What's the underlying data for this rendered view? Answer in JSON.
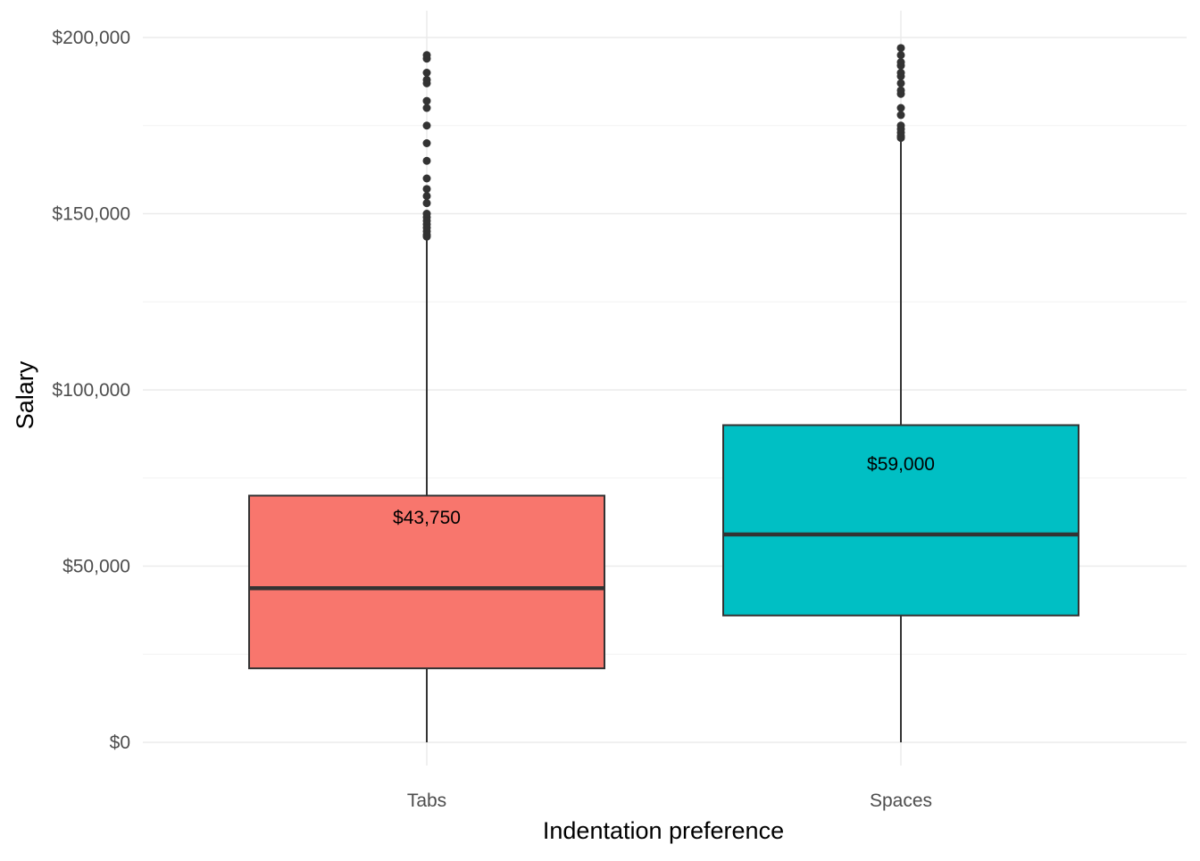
{
  "chart_data": {
    "type": "boxplot",
    "title": "",
    "xlabel": "Indentation preference",
    "ylabel": "Salary",
    "ylim": [
      0,
      200000
    ],
    "y_ticks": [
      0,
      50000,
      100000,
      150000,
      200000
    ],
    "y_tick_labels": [
      "$0",
      "$50,000",
      "$100,000",
      "$150,000",
      "$200,000"
    ],
    "grid": true,
    "legend": "none",
    "categories": [
      "Tabs",
      "Spaces"
    ],
    "boxes": [
      {
        "category": "Tabs",
        "color": "#f8766d",
        "whisker_low": 0,
        "q1": 21000,
        "median": 43750,
        "q3": 70000,
        "whisker_high": 143000,
        "median_label": "$43,750",
        "outliers": [
          143500,
          144000,
          145000,
          146000,
          147000,
          148000,
          149000,
          150000,
          153000,
          155000,
          157000,
          160000,
          165000,
          170000,
          175000,
          180000,
          182000,
          187000,
          188000,
          190000,
          194000,
          195000
        ]
      },
      {
        "category": "Spaces",
        "color": "#00bfc4",
        "whisker_low": 0,
        "q1": 36000,
        "median": 59000,
        "q3": 90000,
        "whisker_high": 171000,
        "median_label": "$59,000",
        "outliers": [
          171500,
          172000,
          173000,
          174000,
          175000,
          178000,
          180000,
          184000,
          185000,
          187000,
          189000,
          190000,
          192000,
          193000,
          195000,
          197000
        ]
      }
    ]
  }
}
